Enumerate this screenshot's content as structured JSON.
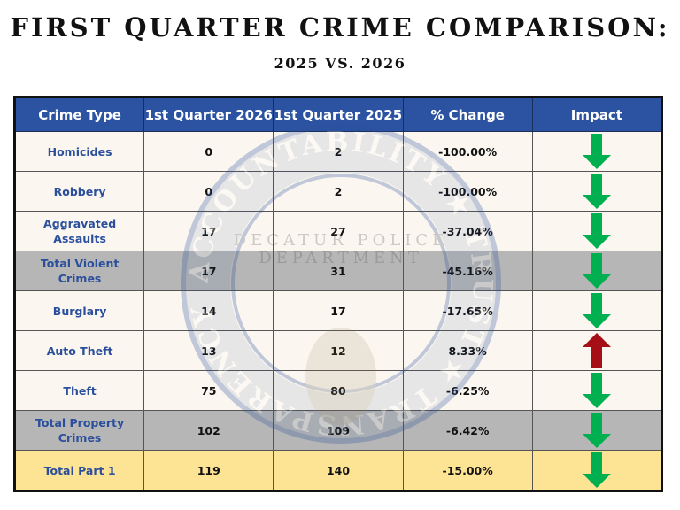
{
  "title": "FIRST QUARTER CRIME COMPARISON:",
  "subtitle": "2025 VS. 2026",
  "colors": {
    "header": "#2c53a1",
    "label": "#2c4f9c",
    "row": "#fbf6ee",
    "total": "#b0b0b0",
    "grand_total": "#fde18e",
    "decrease": "#00b050",
    "increase": "#a50f15"
  },
  "watermark": {
    "ring_text": "ACCOUNTABILITY ★ TRUST ★ TRANSPARENCY ★ LOYALTY ★",
    "center_text_1": "DECATUR POLICE",
    "center_text_2": "DEPARTMENT"
  },
  "table": {
    "headers": [
      "Crime Type",
      "1st Quarter 2026",
      "1st Quarter 2025",
      "% Change",
      "Impact"
    ],
    "rows": [
      {
        "type": "Homicides",
        "q2026": "0",
        "q2025": "2",
        "change": "-100.00%",
        "impact": "down",
        "style": "row"
      },
      {
        "type": "Robbery",
        "q2026": "0",
        "q2025": "2",
        "change": "-100.00%",
        "impact": "down",
        "style": "row"
      },
      {
        "type": "Aggravated Assaults",
        "q2026": "17",
        "q2025": "27",
        "change": "-37.04%",
        "impact": "down",
        "style": "row"
      },
      {
        "type": "Total Violent Crimes",
        "q2026": "17",
        "q2025": "31",
        "change": "-45.16%",
        "impact": "down",
        "style": "total"
      },
      {
        "type": "Burglary",
        "q2026": "14",
        "q2025": "17",
        "change": "-17.65%",
        "impact": "down",
        "style": "row"
      },
      {
        "type": "Auto Theft",
        "q2026": "13",
        "q2025": "12",
        "change": "8.33%",
        "impact": "up",
        "style": "row"
      },
      {
        "type": "Theft",
        "q2026": "75",
        "q2025": "80",
        "change": "-6.25%",
        "impact": "down",
        "style": "row"
      },
      {
        "type": "Total Property Crimes",
        "q2026": "102",
        "q2025": "109",
        "change": "-6.42%",
        "impact": "down",
        "style": "total"
      },
      {
        "type": "Total Part 1",
        "q2026": "119",
        "q2025": "140",
        "change": "-15.00%",
        "impact": "down",
        "style": "grand"
      }
    ]
  }
}
